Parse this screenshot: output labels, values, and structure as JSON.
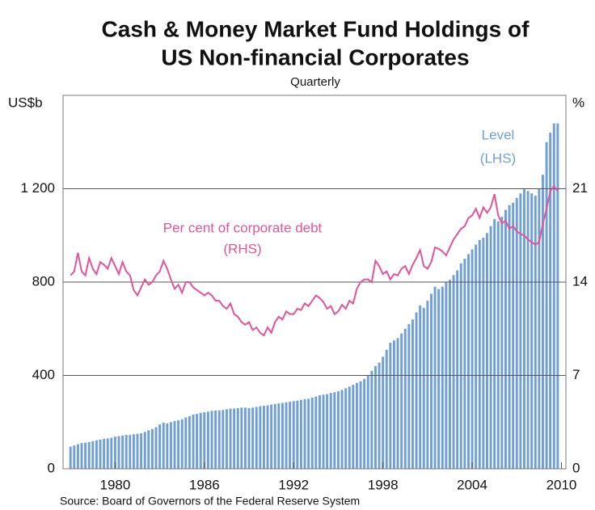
{
  "chart_data": {
    "type": "bar_line",
    "title": [
      "Cash & Money Market Fund Holdings of",
      "US Non-financial Corporates"
    ],
    "subtitle": "Quarterly",
    "ylabel": "US$b",
    "y2label": "%",
    "annotations": [
      {
        "text": "Level",
        "series": 0
      },
      {
        "text": "(LHS)",
        "series": 0
      },
      {
        "text": "Per cent of corporate debt",
        "series": 1
      },
      {
        "text": "(RHS)",
        "series": 1
      }
    ],
    "source": "Source: Board of Governors of the Federal Reserve System",
    "xlim": [
      1976.5,
      2010.3
    ],
    "xticks": [
      1980,
      1986,
      1992,
      1998,
      2004,
      2010
    ],
    "ylim": [
      0,
      1600
    ],
    "yticks": [
      0,
      400,
      800,
      {
        "value": 1200,
        "label": "1 200"
      }
    ],
    "y2lim": [
      0,
      28
    ],
    "y2ticks": [
      0,
      7,
      14,
      21
    ],
    "grid": true,
    "x": [
      1977,
      1977.25,
      1977.5,
      1977.75,
      1978,
      1978.25,
      1978.5,
      1978.75,
      1979,
      1979.25,
      1979.5,
      1979.75,
      1980,
      1980.25,
      1980.5,
      1980.75,
      1981,
      1981.25,
      1981.5,
      1981.75,
      1982,
      1982.25,
      1982.5,
      1982.75,
      1983,
      1983.25,
      1983.5,
      1983.75,
      1984,
      1984.25,
      1984.5,
      1984.75,
      1985,
      1985.25,
      1985.5,
      1985.75,
      1986,
      1986.25,
      1986.5,
      1986.75,
      1987,
      1987.25,
      1987.5,
      1987.75,
      1988,
      1988.25,
      1988.5,
      1988.75,
      1989,
      1989.25,
      1989.5,
      1989.75,
      1990,
      1990.25,
      1990.5,
      1990.75,
      1991,
      1991.25,
      1991.5,
      1991.75,
      1992,
      1992.25,
      1992.5,
      1992.75,
      1993,
      1993.25,
      1993.5,
      1993.75,
      1994,
      1994.25,
      1994.5,
      1994.75,
      1995,
      1995.25,
      1995.5,
      1995.75,
      1996,
      1996.25,
      1996.5,
      1996.75,
      1997,
      1997.25,
      1997.5,
      1997.75,
      1998,
      1998.25,
      1998.5,
      1998.75,
      1999,
      1999.25,
      1999.5,
      1999.75,
      2000,
      2000.25,
      2000.5,
      2000.75,
      2001,
      2001.25,
      2001.5,
      2001.75,
      2002,
      2002.25,
      2002.5,
      2002.75,
      2003,
      2003.25,
      2003.5,
      2003.75,
      2004,
      2004.25,
      2004.5,
      2004.75,
      2005,
      2005.25,
      2005.5,
      2005.75,
      2006,
      2006.25,
      2006.5,
      2006.75,
      2007,
      2007.25,
      2007.5,
      2007.75,
      2008,
      2008.25,
      2008.5,
      2008.75,
      2009,
      2009.25,
      2009.5,
      2009.75
    ],
    "series": [
      {
        "name": "Level",
        "type": "bar",
        "axis": "y",
        "color": "#6f9fd6",
        "values": [
          95,
          100,
          105,
          110,
          112,
          115,
          118,
          122,
          125,
          128,
          130,
          133,
          138,
          140,
          142,
          145,
          145,
          148,
          150,
          152,
          158,
          165,
          170,
          178,
          190,
          198,
          195,
          200,
          205,
          208,
          212,
          220,
          225,
          232,
          235,
          240,
          242,
          245,
          248,
          250,
          250,
          252,
          255,
          258,
          258,
          260,
          262,
          262,
          260,
          262,
          265,
          268,
          270,
          272,
          275,
          278,
          280,
          282,
          285,
          288,
          290,
          292,
          295,
          298,
          300,
          305,
          310,
          315,
          318,
          320,
          325,
          328,
          332,
          338,
          345,
          352,
          360,
          368,
          375,
          385,
          400,
          420,
          440,
          455,
          480,
          510,
          540,
          550,
          560,
          580,
          600,
          620,
          640,
          670,
          700,
          690,
          720,
          750,
          780,
          770,
          780,
          800,
          810,
          830,
          850,
          880,
          900,
          920,
          940,
          960,
          980,
          990,
          1010,
          1040,
          1070,
          1060,
          1080,
          1110,
          1130,
          1140,
          1160,
          1180,
          1200,
          1190,
          1180,
          1170,
          1200,
          1260,
          1400,
          1440,
          1480,
          1480
        ]
      },
      {
        "name": "Per cent of corporate debt",
        "type": "line",
        "axis": "y2",
        "color": "#e2549a",
        "values": [
          14.5,
          14.8,
          16.2,
          14.8,
          14.5,
          15.8,
          15.0,
          14.6,
          15.5,
          15.3,
          15.0,
          15.8,
          15.2,
          14.6,
          15.5,
          14.8,
          14.5,
          13.4,
          13.0,
          13.6,
          14.2,
          13.8,
          14.0,
          14.5,
          14.8,
          15.6,
          15.0,
          14.2,
          13.5,
          13.8,
          13.2,
          14.0,
          14.0,
          13.6,
          13.4,
          13.2,
          13.0,
          13.2,
          13.0,
          12.6,
          12.6,
          12.2,
          12.0,
          12.4,
          11.6,
          11.4,
          11.0,
          10.8,
          11.0,
          10.4,
          10.6,
          10.2,
          10.0,
          10.6,
          10.2,
          11.0,
          11.4,
          11.2,
          11.8,
          11.6,
          11.6,
          12.0,
          11.9,
          12.4,
          12.2,
          12.6,
          13.0,
          12.8,
          12.5,
          12.0,
          12.2,
          11.6,
          11.8,
          12.3,
          12.0,
          12.6,
          12.4,
          13.5,
          14.0,
          14.2,
          14.2,
          14.0,
          15.6,
          15.2,
          14.6,
          14.8,
          14.2,
          14.6,
          14.5,
          15.0,
          15.2,
          14.6,
          15.3,
          15.8,
          16.4,
          15.2,
          15.0,
          15.5,
          16.6,
          16.5,
          16.3,
          16.0,
          16.6,
          17.2,
          17.6,
          18.0,
          18.2,
          18.8,
          19.0,
          19.5,
          18.8,
          19.6,
          19.2,
          19.6,
          20.6,
          19.0,
          18.4,
          18.6,
          18.0,
          18.2,
          17.8,
          17.6,
          17.5,
          17.2,
          17.0,
          16.8,
          17.0,
          18.4,
          19.5,
          20.8,
          21.2,
          20.8
        ]
      }
    ]
  }
}
